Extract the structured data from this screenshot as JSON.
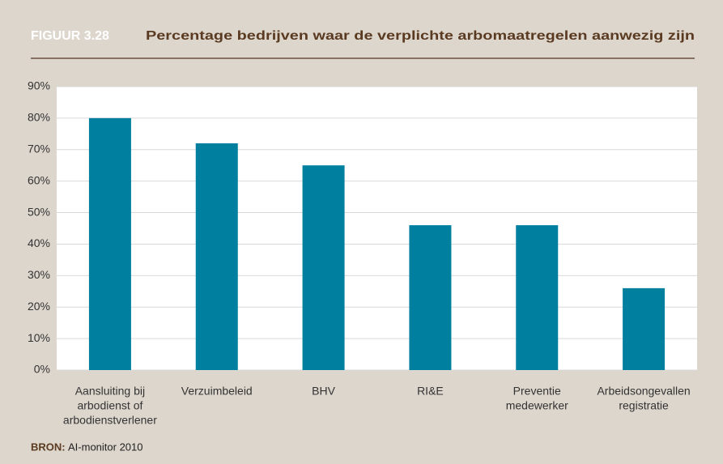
{
  "chart_data": {
    "type": "bar",
    "figure_label": "FIGUUR 3.28",
    "title": "Percentage bedrijven waar de verplichte arbomaatregelen aanwezig zijn",
    "categories": [
      [
        "Aansluiting bij",
        "arbodienst of",
        "arbodienstverlener"
      ],
      [
        "Verzuimbeleid"
      ],
      [
        "BHV"
      ],
      [
        "RI&E"
      ],
      [
        "Preventie",
        "medewerker"
      ],
      [
        "Arbeidsongevallen",
        "registratie"
      ]
    ],
    "values": [
      80,
      72,
      65,
      46,
      46,
      26
    ],
    "color": "#007f9f",
    "ylim": [
      0,
      90
    ],
    "yticks": [
      {
        "value": 0,
        "label": "0%"
      },
      {
        "value": 10,
        "label": "10%"
      },
      {
        "value": 20,
        "label": "20%"
      },
      {
        "value": 30,
        "label": "30%"
      },
      {
        "value": 40,
        "label": "40%"
      },
      {
        "value": 50,
        "label": "50%"
      },
      {
        "value": 60,
        "label": "60%"
      },
      {
        "value": 70,
        "label": "70%"
      },
      {
        "value": 80,
        "label": "80%"
      },
      {
        "value": 90,
        "label": "90%"
      }
    ],
    "grid": true,
    "source": {
      "label": "BRON:",
      "text": "AI-monitor 2010"
    }
  }
}
